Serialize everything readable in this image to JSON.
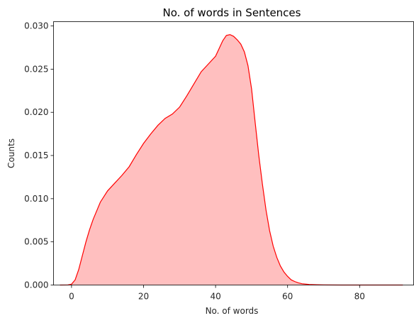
{
  "chart_data": {
    "type": "area",
    "title": "No. of words in Sentences",
    "xlabel": "No. of words",
    "ylabel": "Counts",
    "xlim": [
      -5,
      95
    ],
    "ylim": [
      0,
      0.0305
    ],
    "xticks": [
      0,
      20,
      40,
      60,
      80
    ],
    "xtick_labels": [
      "0",
      "20",
      "40",
      "60",
      "80"
    ],
    "yticks": [
      0,
      0.005,
      0.01,
      0.015,
      0.02,
      0.025,
      0.03
    ],
    "ytick_labels": [
      "0.000",
      "0.005",
      "0.010",
      "0.015",
      "0.020",
      "0.025",
      "0.030"
    ],
    "grid": false,
    "line_color": "#ff0000",
    "fill_color": "#ffbfbf",
    "series": [
      {
        "x": [
          -3.2,
          -1,
          0,
          1,
          2,
          3,
          4,
          5,
          6,
          8,
          10,
          12,
          14,
          16,
          18,
          20,
          22,
          24,
          26,
          28,
          30,
          32,
          34,
          36,
          38,
          40,
          42,
          43,
          44,
          45,
          46,
          47,
          48,
          49,
          50,
          51,
          52,
          53,
          54,
          55,
          56,
          57,
          58,
          59,
          60,
          61,
          62,
          63,
          64,
          65,
          66,
          68,
          70,
          75,
          80,
          85,
          92
        ],
        "y": [
          0.0,
          1e-05,
          0.0001,
          0.0006,
          0.0018,
          0.0034,
          0.005,
          0.0064,
          0.0076,
          0.0096,
          0.0109,
          0.0118,
          0.0127,
          0.0137,
          0.0151,
          0.0164,
          0.0175,
          0.0185,
          0.0193,
          0.0198,
          0.0206,
          0.0219,
          0.0233,
          0.0247,
          0.0256,
          0.0265,
          0.0283,
          0.0289,
          0.029,
          0.0288,
          0.0284,
          0.0279,
          0.027,
          0.0254,
          0.0227,
          0.0188,
          0.015,
          0.0117,
          0.0087,
          0.0063,
          0.0045,
          0.0032,
          0.0022,
          0.0015,
          0.001,
          0.0006,
          0.0004,
          0.00025,
          0.00015,
          0.0001,
          6e-05,
          3e-05,
          1e-05,
          0.0,
          0.0,
          0.0,
          0.0
        ]
      }
    ]
  }
}
